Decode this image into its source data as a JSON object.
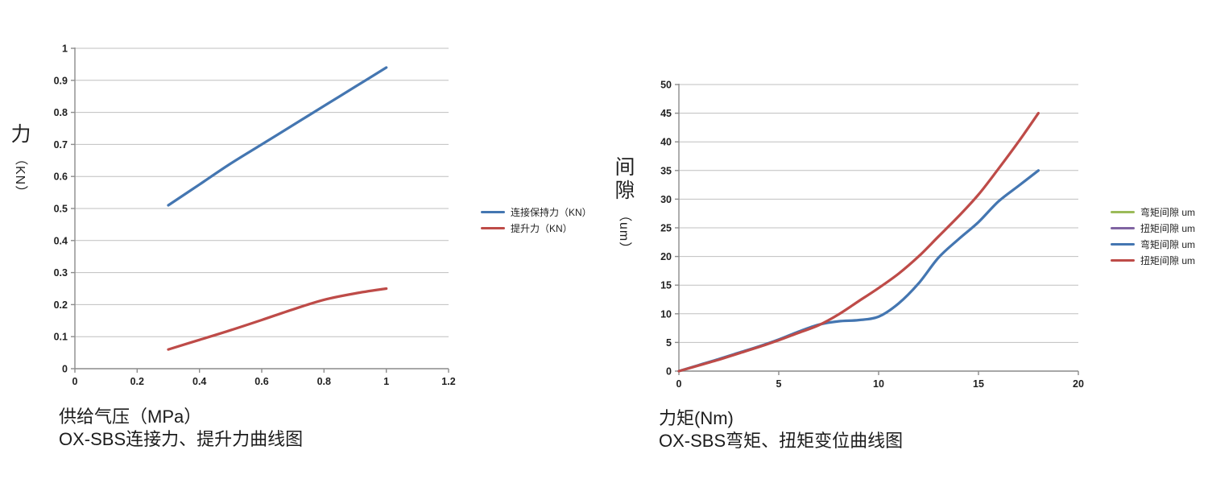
{
  "canvas": {
    "background": "#FFFFFF"
  },
  "chart_data": [
    {
      "id": "force-chart",
      "type": "line",
      "title": "OX-SBS连接力、提升力曲线图",
      "xlabel": "供给气压（MPa）",
      "ylabel": "力（KN）",
      "ylabel_zh": "力",
      "ylabel_unit": "（KN）",
      "xlim": [
        0,
        1.2
      ],
      "ylim": [
        0,
        1
      ],
      "xticks": [
        0,
        0.2,
        0.4,
        0.6,
        0.8,
        1,
        1.2
      ],
      "yticks": [
        0,
        0.1,
        0.2,
        0.3,
        0.4,
        0.5,
        0.6,
        0.7,
        0.8,
        0.9,
        1
      ],
      "grid": "horizontal",
      "legend_position": "right",
      "series": [
        {
          "name": "连接保持力（KN）",
          "color": "#4476B1",
          "x": [
            0.3,
            0.4,
            0.5,
            0.6,
            0.7,
            0.8,
            0.9,
            1.0
          ],
          "y": [
            0.51,
            0.575,
            0.64,
            0.7,
            0.76,
            0.82,
            0.88,
            0.94
          ]
        },
        {
          "name": "提升力（KN）",
          "color": "#BE4B48",
          "x": [
            0.3,
            0.4,
            0.5,
            0.6,
            0.7,
            0.8,
            0.9,
            1.0
          ],
          "y": [
            0.06,
            0.09,
            0.12,
            0.152,
            0.185,
            0.215,
            0.235,
            0.25
          ]
        }
      ]
    },
    {
      "id": "torque-chart",
      "type": "line",
      "title": "OX-SBS弯矩、扭矩变位曲线图",
      "xlabel": "力矩(Nm)",
      "ylabel": "间隙（um）",
      "ylabel_zh": "间隙",
      "ylabel_unit": "（um）",
      "xlim": [
        0,
        20
      ],
      "ylim": [
        0,
        50
      ],
      "xticks": [
        0,
        5,
        10,
        15,
        20
      ],
      "yticks": [
        0,
        5,
        10,
        15,
        20,
        25,
        30,
        35,
        40,
        45,
        50
      ],
      "grid": "horizontal",
      "legend_position": "right",
      "series": [
        {
          "name": "弯矩间隙 um",
          "color": "#9BBB59",
          "x": [],
          "y": []
        },
        {
          "name": "扭矩间隙 um",
          "color": "#8064A2",
          "x": [],
          "y": []
        },
        {
          "name": "弯矩间隙 um",
          "color": "#4476B1",
          "x": [
            0,
            1,
            2,
            3,
            4,
            5,
            6,
            7,
            8,
            9,
            10,
            11,
            12,
            13,
            14,
            15,
            16,
            17,
            18
          ],
          "y": [
            0,
            1.05,
            2.1,
            3.2,
            4.3,
            5.5,
            6.9,
            8.1,
            8.7,
            8.9,
            9.5,
            11.8,
            15.3,
            19.8,
            23,
            26,
            29.6,
            32.3,
            35
          ]
        },
        {
          "name": "扭矩间隙 um",
          "color": "#BE4B48",
          "x": [
            0,
            1,
            2,
            3,
            4,
            5,
            6,
            7,
            8,
            9,
            10,
            11,
            12,
            13,
            14,
            15,
            16,
            17,
            18
          ],
          "y": [
            0,
            1,
            2,
            3.1,
            4.2,
            5.4,
            6.7,
            8,
            9.9,
            12.2,
            14.5,
            17,
            20,
            23.5,
            27,
            30.8,
            35.3,
            40,
            45
          ]
        }
      ]
    }
  ]
}
